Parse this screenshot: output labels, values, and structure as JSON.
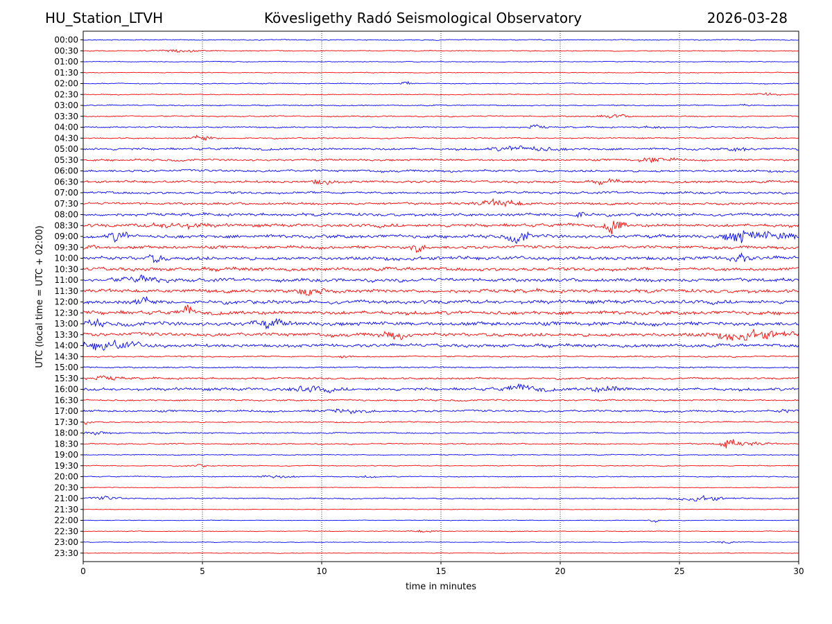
{
  "header": {
    "station": "HU_Station_LTVH",
    "title": "Kövesligethy Radó Seismological Observatory",
    "date": "2026-03-28"
  },
  "chart_data": {
    "type": "line",
    "subtype": "helicorder",
    "title": "Kövesligethy Radó Seismological Observatory",
    "xlabel": "time in minutes",
    "ylabel": "UTC (local time = UTC + 02:00)",
    "xlim": [
      0,
      30
    ],
    "xticks": [
      0,
      5,
      10,
      15,
      20,
      25,
      30
    ],
    "grid_x": true,
    "colors": {
      "even_row": "#0000ff",
      "odd_row": "#ff0000",
      "grid": "#000000"
    },
    "rows": [
      {
        "label": "00:00",
        "noise": 0.6,
        "events": []
      },
      {
        "label": "00:30",
        "noise": 0.6,
        "events": [
          {
            "t": 4.0,
            "amp": 1.5,
            "dur": 1.2
          }
        ]
      },
      {
        "label": "01:00",
        "noise": 0.5,
        "events": []
      },
      {
        "label": "01:30",
        "noise": 0.5,
        "events": []
      },
      {
        "label": "02:00",
        "noise": 0.6,
        "events": [
          {
            "t": 13.5,
            "amp": 2.5,
            "dur": 0.3
          }
        ]
      },
      {
        "label": "02:30",
        "noise": 0.6,
        "events": [
          {
            "t": 28.7,
            "amp": 1.5,
            "dur": 0.8
          }
        ]
      },
      {
        "label": "03:00",
        "noise": 0.7,
        "events": [
          {
            "t": 27.8,
            "amp": 1.5,
            "dur": 0.4
          }
        ]
      },
      {
        "label": "03:30",
        "noise": 0.8,
        "events": [
          {
            "t": 22.3,
            "amp": 2.0,
            "dur": 0.8
          }
        ]
      },
      {
        "label": "04:00",
        "noise": 0.9,
        "events": [
          {
            "t": 19.0,
            "amp": 2.0,
            "dur": 0.6
          },
          {
            "t": 24.0,
            "amp": 1.5,
            "dur": 0.6
          }
        ]
      },
      {
        "label": "04:30",
        "noise": 0.8,
        "events": [
          {
            "t": 5.0,
            "amp": 3.0,
            "dur": 0.6
          }
        ]
      },
      {
        "label": "05:00",
        "noise": 1.4,
        "events": [
          {
            "t": 18.5,
            "amp": 3.0,
            "dur": 1.8
          },
          {
            "t": 27.5,
            "amp": 2.0,
            "dur": 0.6
          }
        ]
      },
      {
        "label": "05:30",
        "noise": 1.3,
        "events": [
          {
            "t": 24.0,
            "amp": 3.0,
            "dur": 1.0
          }
        ]
      },
      {
        "label": "06:00",
        "noise": 1.5,
        "events": []
      },
      {
        "label": "06:30",
        "noise": 1.5,
        "events": [
          {
            "t": 10.0,
            "amp": 3.0,
            "dur": 0.6
          },
          {
            "t": 22.0,
            "amp": 2.5,
            "dur": 0.6
          }
        ]
      },
      {
        "label": "07:00",
        "noise": 1.5,
        "events": []
      },
      {
        "label": "07:30",
        "noise": 1.5,
        "events": [
          {
            "t": 17.5,
            "amp": 3.5,
            "dur": 1.4
          }
        ]
      },
      {
        "label": "08:00",
        "noise": 1.8,
        "events": [
          {
            "t": 20.9,
            "amp": 4.0,
            "dur": 0.4
          }
        ]
      },
      {
        "label": "08:30",
        "noise": 2.0,
        "events": [
          {
            "t": 22.1,
            "amp": 12.0,
            "dur": 0.25
          },
          {
            "t": 22.5,
            "amp": 6.0,
            "dur": 0.3
          },
          {
            "t": 4.0,
            "amp": 3.0,
            "dur": 1.5
          }
        ]
      },
      {
        "label": "09:00",
        "noise": 2.2,
        "events": [
          {
            "t": 1.5,
            "amp": 7.0,
            "dur": 0.5
          },
          {
            "t": 18.3,
            "amp": 6.0,
            "dur": 0.6
          },
          {
            "t": 27.5,
            "amp": 8.0,
            "dur": 0.8
          },
          {
            "t": 29.0,
            "amp": 4.0,
            "dur": 1.5
          }
        ]
      },
      {
        "label": "09:30",
        "noise": 2.0,
        "events": [
          {
            "t": 14.0,
            "amp": 5.0,
            "dur": 0.4
          },
          {
            "t": 0.2,
            "amp": 4.0,
            "dur": 0.4
          }
        ]
      },
      {
        "label": "10:00",
        "noise": 2.3,
        "events": [
          {
            "t": 3.0,
            "amp": 5.0,
            "dur": 0.5
          },
          {
            "t": 27.5,
            "amp": 5.0,
            "dur": 0.5
          }
        ]
      },
      {
        "label": "10:30",
        "noise": 2.2,
        "events": []
      },
      {
        "label": "11:00",
        "noise": 2.2,
        "events": [
          {
            "t": 2.5,
            "amp": 3.5,
            "dur": 1.2
          }
        ]
      },
      {
        "label": "11:30",
        "noise": 2.2,
        "events": [
          {
            "t": 9.5,
            "amp": 5.0,
            "dur": 0.8
          }
        ]
      },
      {
        "label": "12:00",
        "noise": 2.3,
        "events": [
          {
            "t": 2.5,
            "amp": 4.0,
            "dur": 0.5
          }
        ]
      },
      {
        "label": "12:30",
        "noise": 2.4,
        "events": [
          {
            "t": 4.4,
            "amp": 5.0,
            "dur": 0.3
          }
        ]
      },
      {
        "label": "13:00",
        "noise": 2.5,
        "events": [
          {
            "t": 0.5,
            "amp": 4.0,
            "dur": 0.4
          },
          {
            "t": 7.8,
            "amp": 4.0,
            "dur": 1.0
          }
        ]
      },
      {
        "label": "13:30",
        "noise": 2.3,
        "events": [
          {
            "t": 28.0,
            "amp": 5.0,
            "dur": 2.0
          },
          {
            "t": 13.0,
            "amp": 3.5,
            "dur": 0.8
          }
        ]
      },
      {
        "label": "14:00",
        "noise": 2.0,
        "events": [
          {
            "t": 1.0,
            "amp": 5.0,
            "dur": 2.0
          }
        ]
      },
      {
        "label": "14:30",
        "noise": 0.9,
        "events": [
          {
            "t": 11.0,
            "amp": 1.5,
            "dur": 0.4
          }
        ]
      },
      {
        "label": "15:00",
        "noise": 0.9,
        "events": []
      },
      {
        "label": "15:30",
        "noise": 1.2,
        "events": [
          {
            "t": 1.0,
            "amp": 2.0,
            "dur": 1.0
          }
        ]
      },
      {
        "label": "16:00",
        "noise": 1.8,
        "events": [
          {
            "t": 9.5,
            "amp": 3.0,
            "dur": 1.2
          },
          {
            "t": 18.5,
            "amp": 3.0,
            "dur": 1.2
          },
          {
            "t": 22.0,
            "amp": 3.0,
            "dur": 1.2
          }
        ]
      },
      {
        "label": "16:30",
        "noise": 1.0,
        "events": []
      },
      {
        "label": "17:00",
        "noise": 1.3,
        "events": [
          {
            "t": 11.0,
            "amp": 2.5,
            "dur": 1.2
          },
          {
            "t": 29.5,
            "amp": 2.0,
            "dur": 0.5
          }
        ]
      },
      {
        "label": "17:30",
        "noise": 0.8,
        "events": [
          {
            "t": 0.2,
            "amp": 3.0,
            "dur": 0.3
          }
        ]
      },
      {
        "label": "18:00",
        "noise": 0.8,
        "events": [
          {
            "t": 0.5,
            "amp": 1.8,
            "dur": 0.8
          }
        ]
      },
      {
        "label": "18:30",
        "noise": 0.8,
        "events": [
          {
            "t": 27.0,
            "amp": 6.0,
            "dur": 0.4
          },
          {
            "t": 27.8,
            "amp": 2.5,
            "dur": 1.2
          }
        ]
      },
      {
        "label": "19:00",
        "noise": 0.6,
        "events": []
      },
      {
        "label": "19:30",
        "noise": 0.6,
        "events": [
          {
            "t": 4.8,
            "amp": 1.5,
            "dur": 0.6
          }
        ]
      },
      {
        "label": "20:00",
        "noise": 0.6,
        "events": [
          {
            "t": 8.0,
            "amp": 1.8,
            "dur": 1.2
          },
          {
            "t": 12.0,
            "amp": 1.3,
            "dur": 0.5
          }
        ]
      },
      {
        "label": "20:30",
        "noise": 0.5,
        "events": []
      },
      {
        "label": "21:00",
        "noise": 0.8,
        "events": [
          {
            "t": 1.0,
            "amp": 2.0,
            "dur": 0.8
          },
          {
            "t": 26.0,
            "amp": 3.0,
            "dur": 1.2
          }
        ]
      },
      {
        "label": "21:30",
        "noise": 0.4,
        "events": []
      },
      {
        "label": "22:00",
        "noise": 0.4,
        "events": [
          {
            "t": 24.0,
            "amp": 1.5,
            "dur": 0.4
          }
        ]
      },
      {
        "label": "22:30",
        "noise": 0.5,
        "events": [
          {
            "t": 14.3,
            "amp": 1.5,
            "dur": 0.8
          }
        ]
      },
      {
        "label": "23:00",
        "noise": 0.4,
        "events": [
          {
            "t": 27.0,
            "amp": 1.3,
            "dur": 0.6
          }
        ]
      },
      {
        "label": "23:30",
        "noise": 0.4,
        "events": []
      }
    ]
  }
}
